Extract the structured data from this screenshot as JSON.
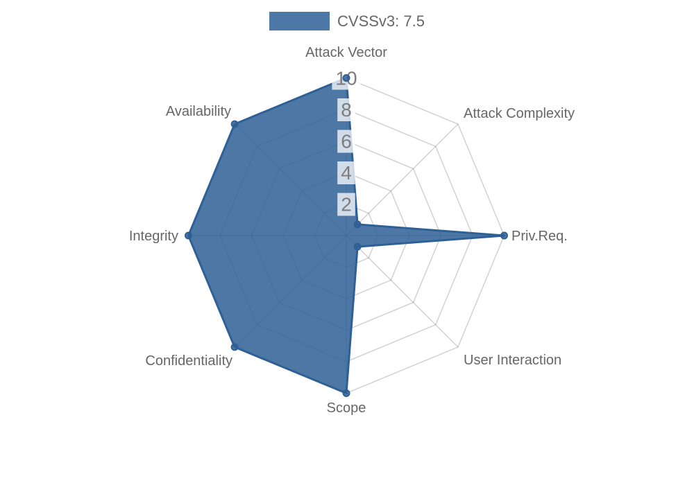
{
  "legend": {
    "label": "CVSSv3: 7.5",
    "position": "top"
  },
  "chart_data": {
    "type": "radar",
    "title": "",
    "categories": [
      "Attack Vector",
      "Attack Complexity",
      "Priv.Req.",
      "User Interaction",
      "Scope",
      "Confidentiality",
      "Integrity",
      "Availability"
    ],
    "series": [
      {
        "name": "CVSSv3: 7.5",
        "values": [
          10,
          1,
          10,
          1,
          10,
          10,
          10,
          10
        ]
      }
    ],
    "scale": {
      "min": 0,
      "max": 10,
      "tick_step": 2,
      "tick_labels": [
        "2",
        "4",
        "6",
        "8",
        "10"
      ]
    },
    "grid": true,
    "legend_position": "top",
    "colors": {
      "series_fill": "rgba(46,96,150,0.85)",
      "series_border": "#2e6096",
      "grid_line": "rgba(0,0,0,0.18)",
      "tick_text": "#7d7d7d",
      "tick_backdrop": "rgba(255,255,255,0.75)",
      "label_text": "#666666",
      "legend_text": "#666666",
      "background": "#ffffff"
    }
  }
}
